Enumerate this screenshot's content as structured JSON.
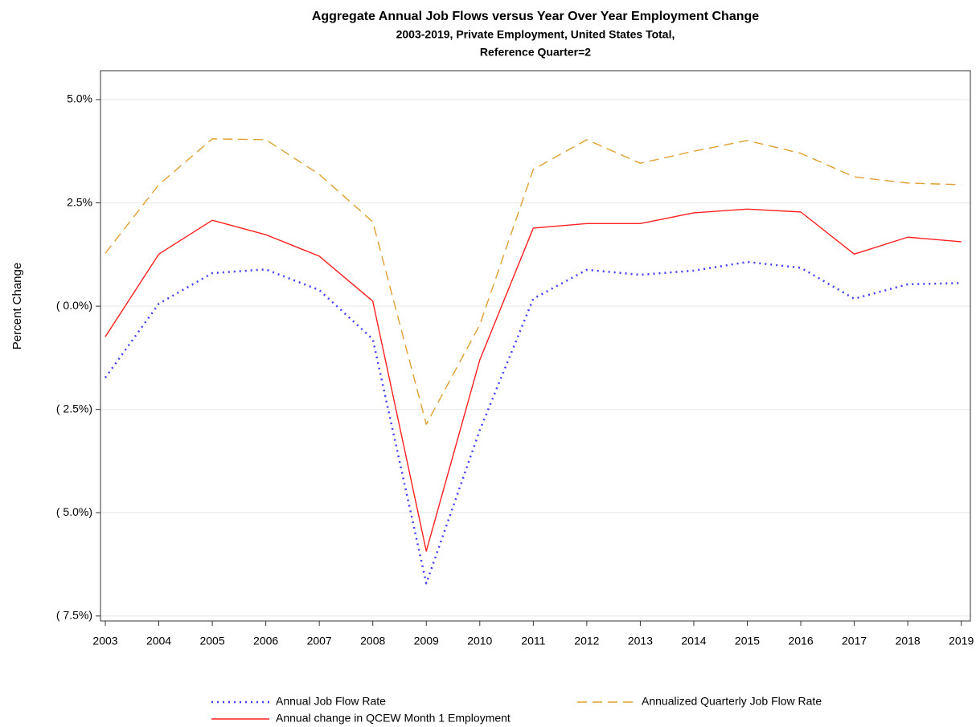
{
  "chart_data": {
    "type": "line",
    "title": "Aggregate Annual Job Flows versus Year Over Year Employment Change",
    "subtitle": [
      "2003-2019, Private Employment, United States Total,",
      "Reference Quarter=2"
    ],
    "y_label": "Percent Change",
    "x": [
      2003,
      2004,
      2005,
      2006,
      2007,
      2008,
      2009,
      2010,
      2011,
      2012,
      2013,
      2014,
      2015,
      2016,
      2017,
      2018,
      2019
    ],
    "xlim": [
      2002.91,
      2019.17
    ],
    "xticks": [
      2003,
      2004,
      2005,
      2006,
      2007,
      2008,
      2009,
      2010,
      2011,
      2012,
      2013,
      2014,
      2015,
      2016,
      2017,
      2018,
      2019
    ],
    "ylim": [
      -7.62,
      5.7
    ],
    "yticks": [
      {
        "value": 5,
        "label": "5.0%"
      },
      {
        "value": 2.5,
        "label": "2.5%"
      },
      {
        "value": 0,
        "label": "( 0.0%)"
      },
      {
        "value": -2.5,
        "label": "( 2.5%)"
      },
      {
        "value": -5,
        "label": "( 5.0%)"
      },
      {
        "value": -7.5,
        "label": "( 7.5%)"
      }
    ],
    "grid": true,
    "legend": "bottom",
    "series": [
      {
        "name": "Annual Job Flow Rate",
        "color": "#4040ff",
        "dash": "dotted",
        "values": [
          -1.73,
          0.06,
          0.8,
          0.89,
          0.39,
          -0.8,
          -6.71,
          -3.0,
          0.18,
          0.88,
          0.76,
          0.86,
          1.07,
          0.93,
          0.18,
          0.53,
          0.56
        ]
      },
      {
        "name": "Annualized Quarterly Job Flow Rate",
        "color": "#e0a030",
        "dash": "dashed",
        "values": [
          1.28,
          2.94,
          4.05,
          4.03,
          3.19,
          2.04,
          -2.86,
          -0.45,
          3.31,
          4.03,
          3.46,
          3.75,
          4.01,
          3.7,
          3.13,
          2.98,
          2.94
        ]
      },
      {
        "name": "Annual change in QCEW Month 1 Employment",
        "color": "#ff2020",
        "dash": "solid",
        "values": [
          -0.74,
          1.26,
          2.08,
          1.73,
          1.21,
          0.12,
          -5.93,
          -1.3,
          1.89,
          2.0,
          2.0,
          2.26,
          2.35,
          2.28,
          1.26,
          1.67,
          1.56
        ]
      }
    ]
  }
}
